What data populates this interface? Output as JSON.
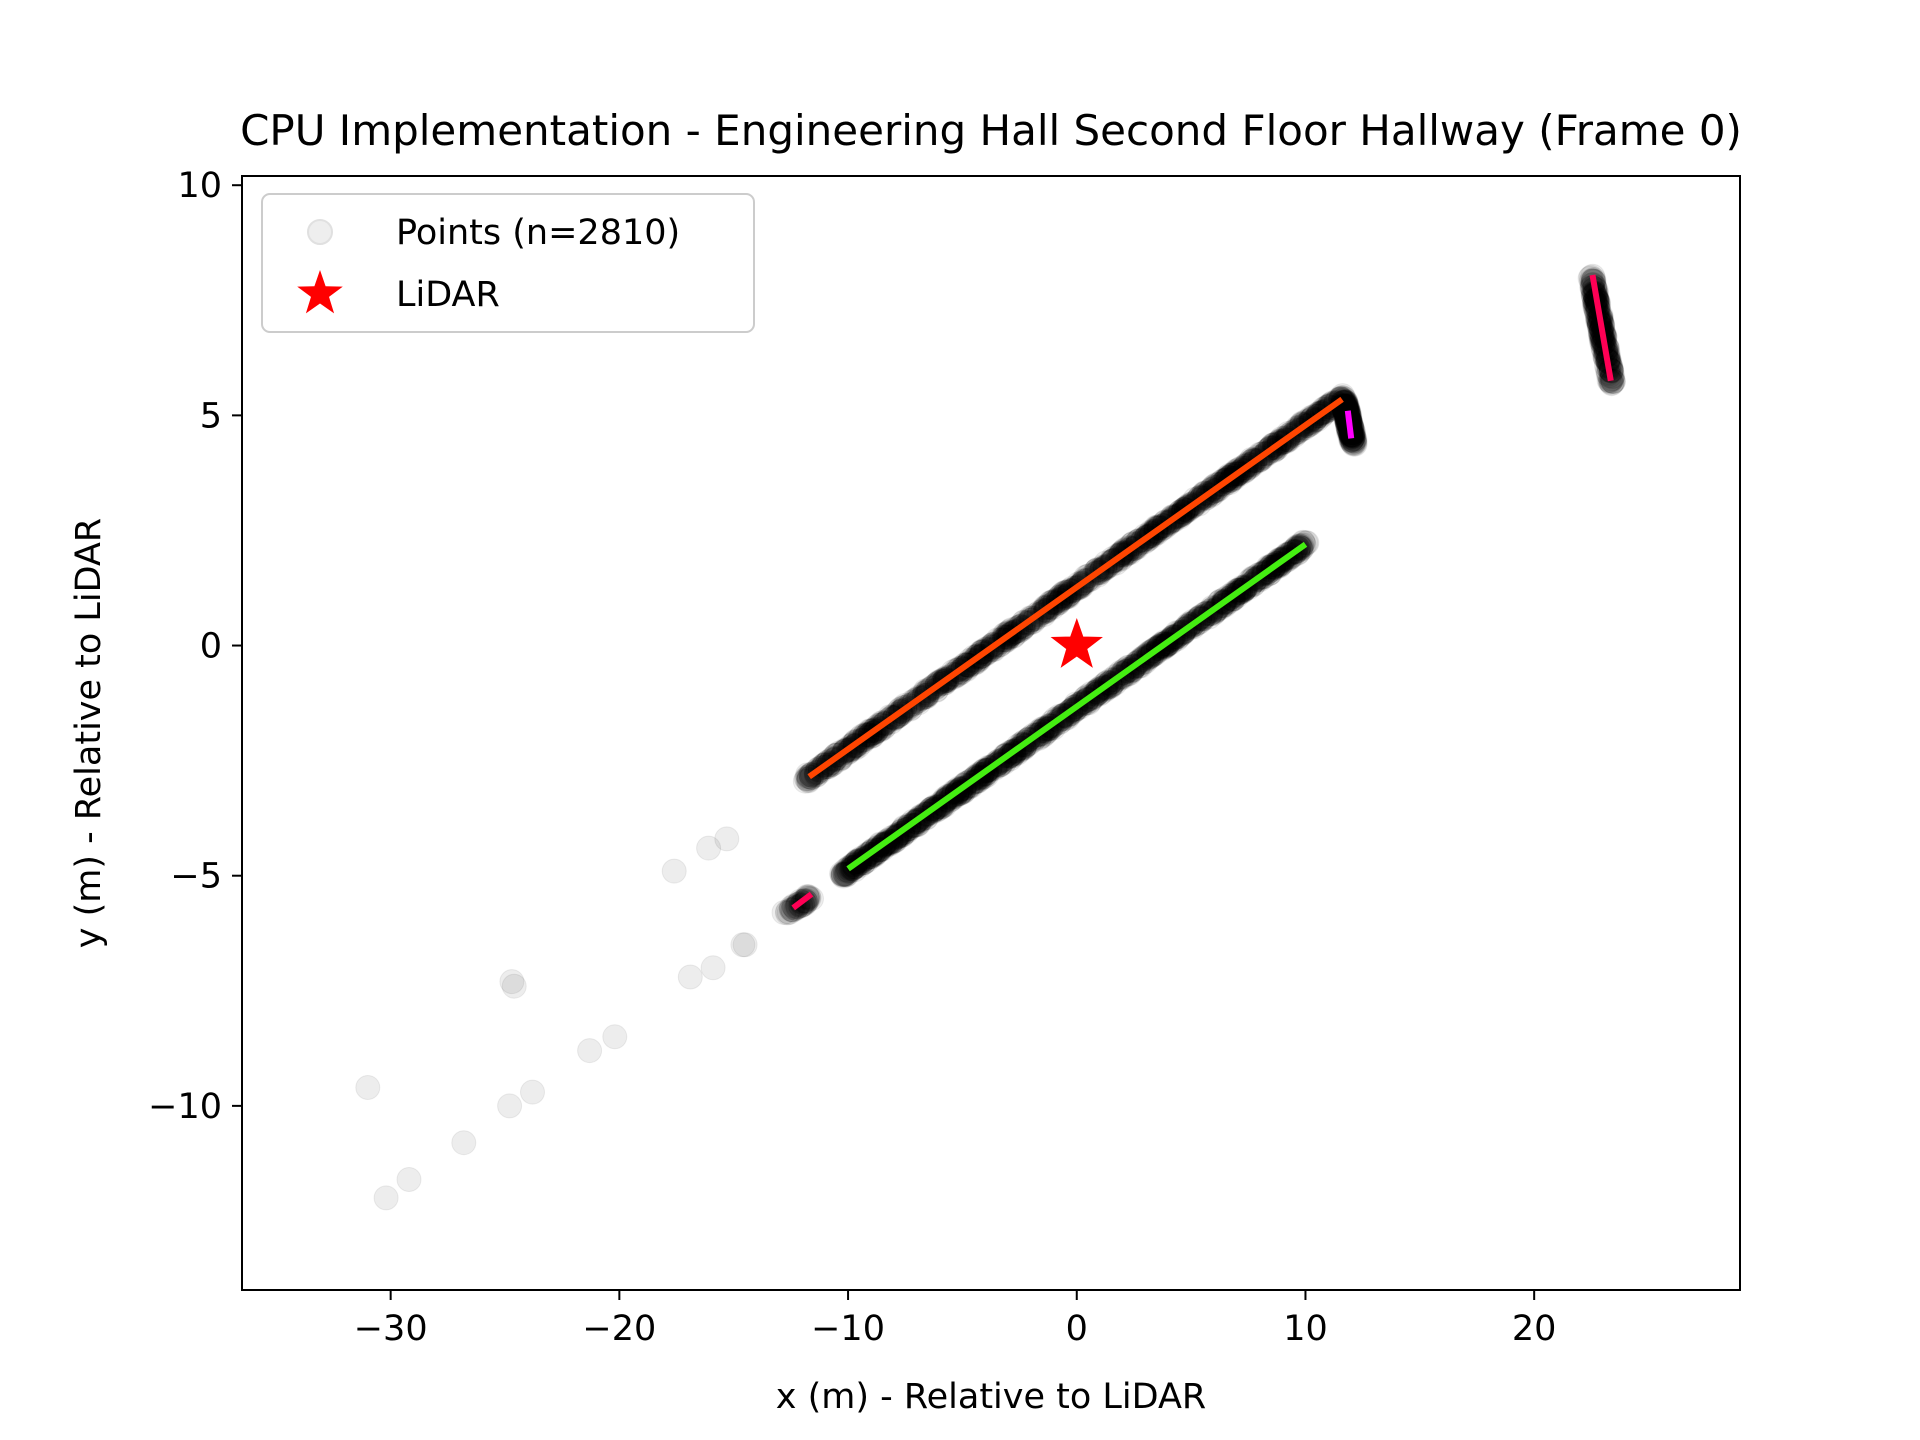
{
  "chart_data": {
    "type": "scatter",
    "title": "CPU Implementation - Engineering Hall Second Floor Hallway (Frame 0)",
    "xlabel": "x (m) - Relative to LiDAR",
    "ylabel": "y (m) - Relative to LiDAR",
    "xlim": [
      -36.5,
      29
    ],
    "ylim": [
      -14,
      10.2
    ],
    "x_ticks": [
      -30,
      -20,
      -10,
      0,
      10,
      20
    ],
    "y_ticks": [
      -10,
      -5,
      0,
      5,
      10
    ],
    "x_tick_labels": [
      "−30",
      "−20",
      "−10",
      "0",
      "10",
      "20"
    ],
    "y_tick_labels": [
      "−10",
      "−5",
      "0",
      "5",
      "10"
    ],
    "grid": false,
    "legend_position": "top-left",
    "legend": [
      {
        "label": "Points (n=2810)",
        "marker": "circle",
        "color": "#bbbbbb"
      },
      {
        "label": "LiDAR",
        "marker": "star",
        "color": "#ff0000"
      }
    ],
    "points_n": 2810,
    "point_color": "#000000",
    "point_alpha": 0.07,
    "point_clusters": [
      {
        "segment": [
          [
            -11.8,
            -2.9
          ],
          [
            11.7,
            5.4
          ]
        ],
        "density": "high"
      },
      {
        "segment": [
          [
            -10.3,
            -5.0
          ],
          [
            10.0,
            2.2
          ]
        ],
        "density": "high"
      },
      {
        "segment": [
          [
            11.7,
            5.3
          ],
          [
            12.1,
            4.4
          ]
        ],
        "density": "medium"
      },
      {
        "segment": [
          [
            22.5,
            8.0
          ],
          [
            23.4,
            5.7
          ]
        ],
        "density": "medium"
      },
      {
        "segment": [
          [
            -12.7,
            -5.8
          ],
          [
            -11.7,
            -5.5
          ]
        ],
        "density": "low"
      }
    ],
    "scattered_points": [
      [
        -31.0,
        -9.6
      ],
      [
        -30.2,
        -12.0
      ],
      [
        -29.2,
        -11.6
      ],
      [
        -26.8,
        -10.8
      ],
      [
        -24.7,
        -7.3
      ],
      [
        -24.6,
        -7.4
      ],
      [
        -24.8,
        -10.0
      ],
      [
        -23.8,
        -9.7
      ],
      [
        -21.3,
        -8.8
      ],
      [
        -20.2,
        -8.5
      ],
      [
        -17.6,
        -4.9
      ],
      [
        -16.9,
        -7.2
      ],
      [
        -16.1,
        -4.4
      ],
      [
        -15.9,
        -7.0
      ],
      [
        -15.3,
        -4.2
      ],
      [
        -14.6,
        -6.5
      ],
      [
        -14.5,
        -6.5
      ],
      [
        -12.8,
        -5.8
      ],
      [
        -11.6,
        -5.5
      ]
    ],
    "lidar_position": [
      0,
      0
    ],
    "lidar_color": "#ff0000",
    "series": [
      {
        "x": [
          -11.7,
          11.6
        ],
        "y": [
          -2.85,
          5.35
        ],
        "color": "#ff4500"
      },
      {
        "x": [
          -10.0,
          10.0
        ],
        "y": [
          -4.85,
          2.2
        ],
        "color": "#44ee11"
      },
      {
        "x": [
          11.85,
          12.0
        ],
        "y": [
          5.1,
          4.5
        ],
        "color": "#ff00ff"
      },
      {
        "x": [
          22.55,
          23.35
        ],
        "y": [
          8.05,
          5.75
        ],
        "color": "#ff0055"
      },
      {
        "x": [
          -12.4,
          -11.6
        ],
        "y": [
          -5.7,
          -5.4
        ],
        "color": "#ff0055"
      }
    ]
  }
}
